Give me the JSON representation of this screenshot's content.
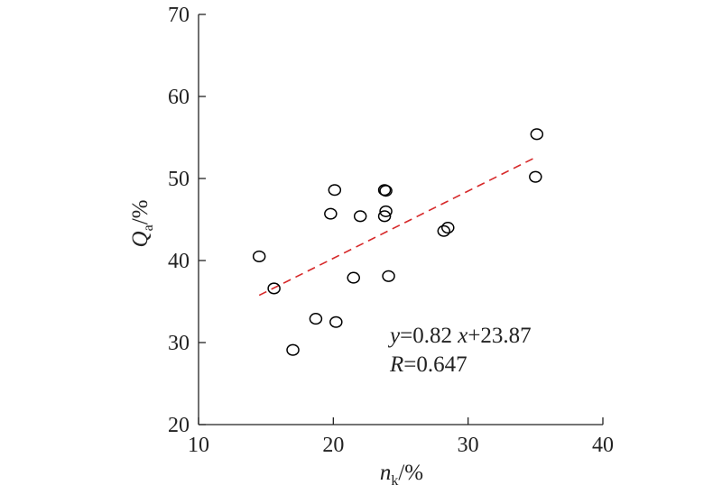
{
  "chart_data": {
    "type": "scatter",
    "title": "",
    "xlabel": {
      "base": "n",
      "sub": "k",
      "suffix": "/%"
    },
    "ylabel": {
      "base": "Q",
      "sub": "a",
      "suffix": "/%"
    },
    "xlim": [
      10,
      40
    ],
    "ylim": [
      20,
      70
    ],
    "xticks": [
      10,
      20,
      30,
      40
    ],
    "yticks": [
      20,
      30,
      40,
      50,
      60,
      70
    ],
    "grid": false,
    "points": [
      {
        "x": 14.5,
        "y": 40.5
      },
      {
        "x": 15.6,
        "y": 36.6
      },
      {
        "x": 17.0,
        "y": 29.1
      },
      {
        "x": 18.7,
        "y": 32.9
      },
      {
        "x": 19.8,
        "y": 45.7
      },
      {
        "x": 20.1,
        "y": 48.6
      },
      {
        "x": 20.2,
        "y": 32.5
      },
      {
        "x": 21.5,
        "y": 37.9
      },
      {
        "x": 22.0,
        "y": 45.4
      },
      {
        "x": 23.8,
        "y": 48.6
      },
      {
        "x": 23.9,
        "y": 48.5
      },
      {
        "x": 23.9,
        "y": 46.0
      },
      {
        "x": 23.8,
        "y": 45.4
      },
      {
        "x": 24.1,
        "y": 38.1
      },
      {
        "x": 28.2,
        "y": 43.6
      },
      {
        "x": 28.5,
        "y": 44.0
      },
      {
        "x": 35.0,
        "y": 50.2
      },
      {
        "x": 35.1,
        "y": 55.4
      }
    ],
    "fit": {
      "slope": 0.82,
      "intercept": 23.87,
      "x_range": [
        14.5,
        35.0
      ],
      "color": "#d62728",
      "style": "dashed"
    },
    "annotations": {
      "equation": {
        "y": "y",
        "eq": "=0.82 ",
        "x": "x",
        "rest": "+23.87"
      },
      "r": {
        "var": "R",
        "rest": "=0.647"
      }
    },
    "marker_color": "#000000",
    "axis_color": "#222222"
  }
}
